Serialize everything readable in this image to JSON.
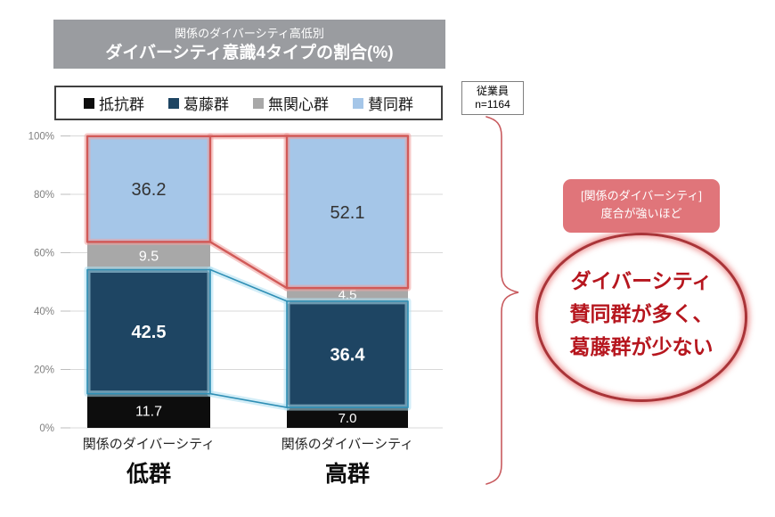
{
  "title": {
    "line1": "関係のダイバーシティ高低別",
    "line2": "ダイバーシティ意識4タイプの割合(%)"
  },
  "sample": {
    "line1": "従業員",
    "line2": "n=1164"
  },
  "legend": [
    {
      "label": "抵抗群",
      "color": "#0d0d0d"
    },
    {
      "label": "葛藤群",
      "color": "#1e4563"
    },
    {
      "label": "無関心群",
      "color": "#a8a8a8"
    },
    {
      "label": "賛同群",
      "color": "#a5c6e8"
    }
  ],
  "chart_data": {
    "type": "bar",
    "stacked": true,
    "unit": "%",
    "ylim": [
      0,
      100
    ],
    "grid": true,
    "y_ticks": [
      "0%",
      "20%",
      "40%",
      "60%",
      "80%",
      "100%"
    ],
    "categories": [
      {
        "line1": "関係のダイバーシティ",
        "line2": "低群"
      },
      {
        "line1": "関係のダイバーシティ",
        "line2": "高群"
      }
    ],
    "series": [
      {
        "name": "抵抗群",
        "color": "#0d0d0d",
        "label_color": "#ffffff",
        "values": [
          11.7,
          7.0
        ]
      },
      {
        "name": "葛藤群",
        "color": "#1e4563",
        "label_color": "#ffffff",
        "label_bold": true,
        "values": [
          42.5,
          36.4
        ],
        "outline": {
          "glow": "#aee0f2",
          "core": "#2f8fb5",
          "core_width": 1.6
        }
      },
      {
        "name": "無関心群",
        "color": "#a8a8a8",
        "label_color": "#ffffff",
        "values": [
          9.5,
          4.5
        ]
      },
      {
        "name": "賛同群",
        "color": "#a5c6e8",
        "label_color": "#333333",
        "values": [
          36.2,
          52.1
        ],
        "outline": {
          "glow": "#f0a09e",
          "core": "#d15a58",
          "core_width": 2.4
        }
      }
    ]
  },
  "annotation": {
    "tag_line1": "[関係のダイバーシティ]",
    "tag_line2": "度合が強いほど",
    "circle_lines": [
      "ダイバーシティ",
      "賛同群が多く、",
      "葛藤群が少ない"
    ],
    "accent_dark": "#a93438",
    "accent_light": "#e0757a",
    "text_color": "#b6161e",
    "brace_color": "#c85a5e"
  }
}
